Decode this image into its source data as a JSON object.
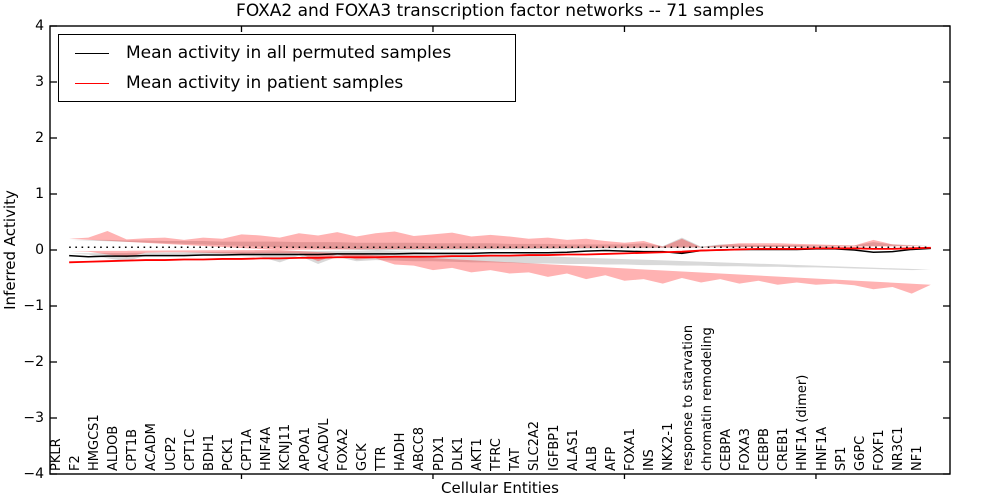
{
  "chart_data": {
    "type": "line",
    "title": "FOXA2 and FOXA3 transcription factor networks -- 71 samples",
    "xlabel": "Cellular Entities",
    "ylabel": "Inferred Activity",
    "ylim": [
      -4,
      4
    ],
    "grid": false,
    "legend_position": "upper left",
    "reference_line_y": 0.05,
    "yticks": [
      {
        "v": -4,
        "label": "−4"
      },
      {
        "v": -3,
        "label": "−3"
      },
      {
        "v": -2,
        "label": "−2"
      },
      {
        "v": -1,
        "label": "−1"
      },
      {
        "v": 0,
        "label": "0"
      },
      {
        "v": 1,
        "label": "1"
      },
      {
        "v": 2,
        "label": "2"
      },
      {
        "v": 3,
        "label": "3"
      },
      {
        "v": 4,
        "label": "4"
      }
    ],
    "xtick_category_indices": [
      9,
      19,
      29,
      39
    ],
    "categories": [
      "PKLR",
      "F2",
      "HMGCS1",
      "ALDOB",
      "CPT1B",
      "ACADM",
      "UCP2",
      "CPT1C",
      "BDH1",
      "PCK1",
      "CPT1A",
      "HNF4A",
      "KCNJ11",
      "APOA1",
      "ACADVL",
      "FOXA2",
      "GCK",
      "TTR",
      "HADH",
      "ABCC8",
      "PDX1",
      "DLK1",
      "AKT1",
      "TFRC",
      "TAT",
      "SLC2A2",
      "IGFBP1",
      "ALAS1",
      "ALB",
      "AFP",
      "FOXA1",
      "INS",
      "NKX2-1",
      "response to starvation",
      "chromatin remodeling",
      "CEBPA",
      "FOXA3",
      "CEBPB",
      "CREB1",
      "HNF1A (dimer)",
      "HNF1A",
      "SP1",
      "G6PC",
      "FOXF1",
      "NR3C1",
      "NF1"
    ],
    "series": [
      {
        "name": "Mean activity in all permuted samples",
        "color": "#000000",
        "band_color": "rgba(0,0,0,0.15)",
        "values": [
          -0.1,
          -0.12,
          -0.11,
          -0.11,
          -0.1,
          -0.1,
          -0.1,
          -0.09,
          -0.09,
          -0.08,
          -0.08,
          -0.08,
          -0.08,
          -0.08,
          -0.07,
          -0.07,
          -0.07,
          -0.07,
          -0.06,
          -0.06,
          -0.06,
          -0.06,
          -0.05,
          -0.05,
          -0.05,
          -0.05,
          -0.04,
          -0.02,
          -0.01,
          -0.02,
          -0.03,
          -0.03,
          -0.06,
          -0.01,
          0.0,
          0.01,
          0.01,
          0.01,
          0.01,
          0.02,
          0.02,
          0.0,
          -0.04,
          -0.03,
          0.01,
          0.03
        ],
        "band_hi": [
          0.18,
          0.18,
          0.18,
          0.17,
          0.17,
          0.16,
          0.16,
          0.16,
          0.15,
          0.15,
          0.15,
          0.15,
          0.14,
          0.14,
          0.14,
          0.13,
          0.13,
          0.13,
          0.13,
          0.12,
          0.12,
          0.12,
          0.12,
          0.11,
          0.11,
          0.11,
          0.1,
          0.1,
          0.1,
          0.1,
          0.12,
          0.07,
          0.22,
          0.06,
          0.1,
          0.1,
          0.09,
          0.09,
          0.09,
          0.08,
          0.08,
          0.08,
          0.14,
          0.1,
          0.09,
          0.08
        ],
        "band_lo": [
          -0.35,
          -0.36,
          -0.35,
          -0.34,
          -0.33,
          -0.32,
          -0.31,
          -0.31,
          -0.3,
          -0.3,
          -0.29,
          -0.29,
          -0.28,
          -0.28,
          -0.27,
          -0.27,
          -0.26,
          -0.26,
          -0.25,
          -0.25,
          -0.24,
          -0.24,
          -0.23,
          -0.22,
          -0.22,
          -0.21,
          -0.2,
          -0.2,
          -0.19,
          -0.18,
          -0.2,
          -0.12,
          -0.25,
          -0.1,
          -0.22,
          -0.12,
          -0.11,
          -0.1,
          -0.1,
          -0.09,
          -0.09,
          -0.1,
          -0.2,
          -0.15,
          -0.08,
          -0.06
        ]
      },
      {
        "name": "Mean activity in patient samples",
        "color": "#ff0000",
        "band_color": "rgba(255,0,0,0.30)",
        "values": [
          -0.22,
          -0.21,
          -0.2,
          -0.19,
          -0.18,
          -0.18,
          -0.17,
          -0.17,
          -0.16,
          -0.16,
          -0.15,
          -0.15,
          -0.14,
          -0.14,
          -0.13,
          -0.13,
          -0.13,
          -0.12,
          -0.12,
          -0.12,
          -0.11,
          -0.11,
          -0.1,
          -0.1,
          -0.09,
          -0.09,
          -0.08,
          -0.08,
          -0.07,
          -0.06,
          -0.05,
          -0.04,
          -0.03,
          -0.01,
          0.0,
          0.01,
          0.02,
          0.02,
          0.02,
          0.03,
          0.03,
          0.03,
          0.02,
          0.02,
          0.03,
          0.04
        ],
        "band_hi": [
          0.2,
          0.22,
          0.34,
          0.19,
          0.21,
          0.22,
          0.18,
          0.22,
          0.2,
          0.28,
          0.26,
          0.22,
          0.3,
          0.26,
          0.32,
          0.24,
          0.3,
          0.33,
          0.25,
          0.28,
          0.31,
          0.24,
          0.27,
          0.24,
          0.2,
          0.22,
          0.18,
          0.2,
          0.16,
          0.13,
          0.16,
          0.06,
          0.2,
          0.05,
          0.09,
          0.12,
          0.12,
          0.12,
          0.11,
          0.1,
          0.09,
          0.08,
          0.18,
          0.1,
          0.08,
          0.07
        ],
        "band_lo": [
          -0.62,
          -0.78,
          -0.66,
          -0.7,
          -0.63,
          -0.6,
          -0.62,
          -0.58,
          -0.62,
          -0.55,
          -0.6,
          -0.52,
          -0.58,
          -0.5,
          -0.6,
          -0.52,
          -0.55,
          -0.45,
          -0.52,
          -0.42,
          -0.48,
          -0.4,
          -0.42,
          -0.36,
          -0.4,
          -0.32,
          -0.36,
          -0.28,
          -0.26,
          -0.15,
          -0.17,
          -0.08,
          -0.2,
          -0.06,
          -0.06,
          -0.06,
          -0.07,
          -0.06,
          -0.05,
          -0.04,
          -0.04,
          -0.05,
          -0.13,
          -0.08,
          -0.03,
          -0.02
        ]
      }
    ]
  }
}
